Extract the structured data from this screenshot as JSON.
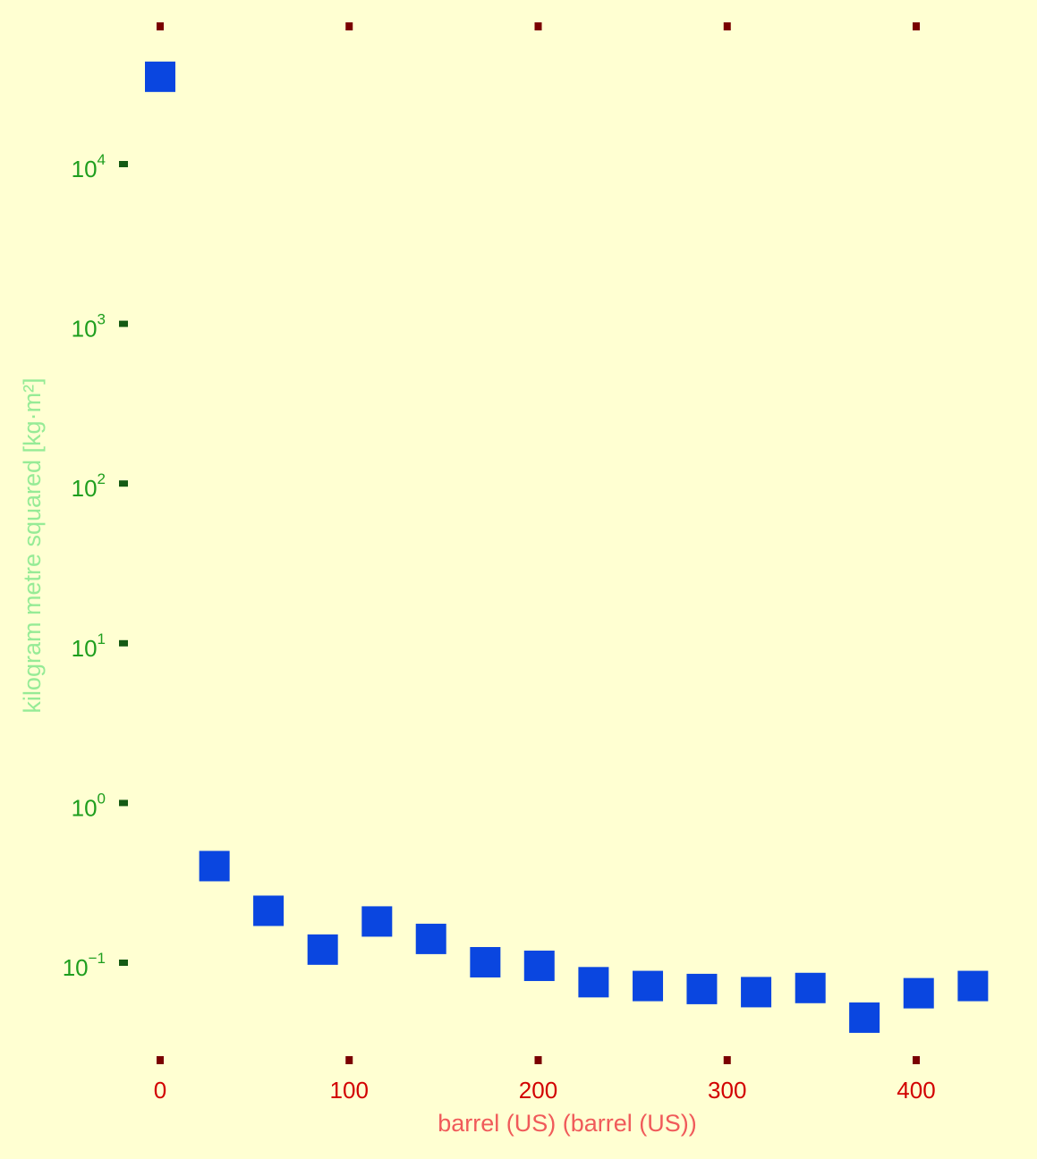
{
  "chart_data": {
    "type": "scatter",
    "title": "",
    "xlabel": "barrel (US) (barrel (US))",
    "ylabel": "kilogram metre squared [kg·m²]",
    "x_scale": "linear",
    "y_scale": "log",
    "xlim": [
      -7.6,
      433
    ],
    "ylim": [
      0.0245,
      61000
    ],
    "x_ticks": [
      0,
      100,
      200,
      300,
      400
    ],
    "y_ticks": [
      {
        "value": 0.1,
        "base": "10",
        "exp": "−1"
      },
      {
        "value": 1,
        "base": "10",
        "exp": "0"
      },
      {
        "value": 10,
        "base": "10",
        "exp": "1"
      },
      {
        "value": 100,
        "base": "10",
        "exp": "2"
      },
      {
        "value": 1000,
        "base": "10",
        "exp": "3"
      },
      {
        "value": 10000,
        "base": "10",
        "exp": "4"
      }
    ],
    "grid": false,
    "legend": "none",
    "series": [
      {
        "marker": "square",
        "color": "#0a46e0",
        "x": [
          0,
          28.7,
          57.3,
          86,
          114.7,
          143.3,
          172,
          200.6,
          229.3,
          258,
          286.6,
          315.3,
          344,
          372.6,
          401.3,
          430
        ],
        "y": [
          35000,
          0.4,
          0.21,
          0.12,
          0.18,
          0.14,
          0.1,
          0.095,
          0.075,
          0.071,
          0.068,
          0.065,
          0.069,
          0.045,
          0.064,
          0.071
        ]
      }
    ]
  },
  "colors": {
    "background": "#ffffd2",
    "x_tick_text": "#d20000",
    "x_tick_mark": "#7a0000",
    "x_axis_title": "#f05a5a",
    "y_tick_text": "#1e9e1e",
    "y_tick_mark": "#145a14",
    "y_axis_title": "#96eb96",
    "marker": "#0a46e0"
  }
}
